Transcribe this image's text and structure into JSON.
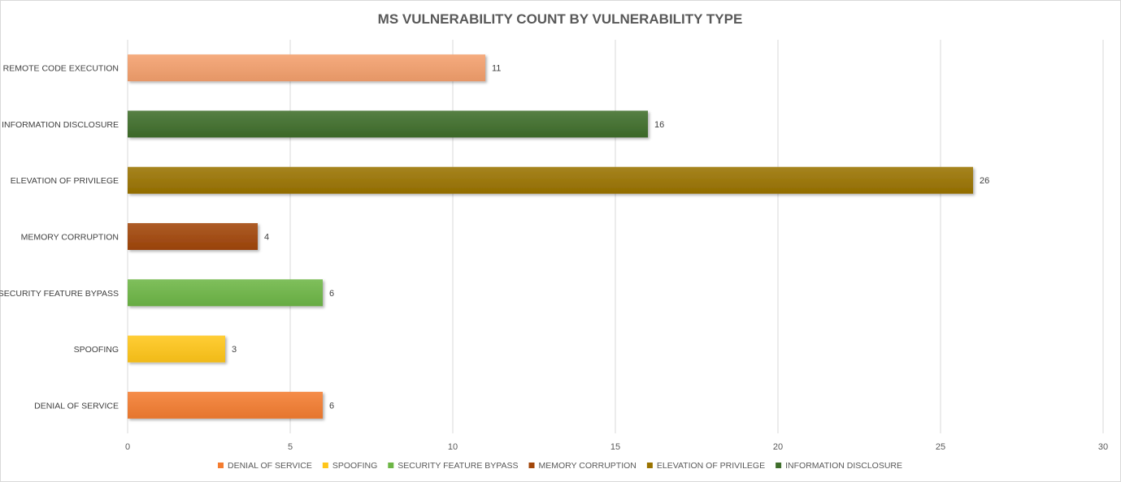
{
  "chart_data": {
    "type": "bar",
    "orientation": "horizontal",
    "title": "MS VULNERABILITY COUNT BY VULNERABILITY TYPE",
    "categories": [
      "REMOTE CODE EXECUTION",
      "INFORMATION DISCLOSURE",
      "ELEVATION OF PRIVILEGE",
      "MEMORY CORRUPTION",
      "SECURITY FEATURE BYPASS",
      "SPOOFING",
      "DENIAL OF SERVICE"
    ],
    "values": [
      11,
      16,
      26,
      4,
      6,
      3,
      6
    ],
    "colors": [
      "#f4a06c",
      "#3f6e2b",
      "#9a7300",
      "#a2460a",
      "#6db646",
      "#ffc61a",
      "#f47c30"
    ],
    "xlim": [
      0,
      30
    ],
    "xticks": [
      "0",
      "5",
      "10",
      "15",
      "20",
      "25",
      "30"
    ],
    "grid": true,
    "data_labels": true,
    "legend": {
      "position": "bottom",
      "entries": [
        {
          "name": "DENIAL OF SERVICE",
          "color": "#f47c30"
        },
        {
          "name": "SPOOFING",
          "color": "#ffc61a"
        },
        {
          "name": "SECURITY FEATURE BYPASS",
          "color": "#6db646"
        },
        {
          "name": "MEMORY CORRUPTION",
          "color": "#a2460a"
        },
        {
          "name": "ELEVATION OF PRIVILEGE",
          "color": "#9a7300"
        },
        {
          "name": "INFORMATION DISCLOSURE",
          "color": "#3f6e2b"
        }
      ]
    }
  }
}
